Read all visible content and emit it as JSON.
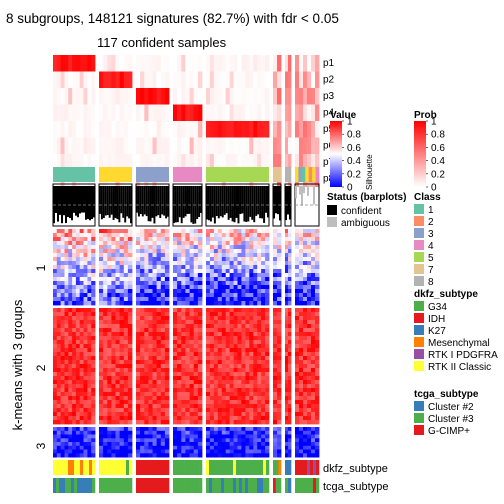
{
  "chart_data": {
    "type": "heatmap",
    "title": "8 subgroups, 148121 signatures (82.7%) with fdr < 0.05",
    "subtitle": "117 confident samples",
    "ylabel": "k-means with 3 groups",
    "row_groups": [
      "1",
      "2",
      "3"
    ],
    "prob_rows": [
      "p1",
      "p2",
      "p3",
      "p4",
      "p5",
      "p6",
      "p7",
      "p8"
    ],
    "column_blocks": [
      {
        "class": "1",
        "width": 42
      },
      {
        "class": "6",
        "width": 33
      },
      {
        "class": "3",
        "width": 33
      },
      {
        "class": "4",
        "width": 29
      },
      {
        "class": "5",
        "width": 63
      },
      {
        "class": "7",
        "width": 8
      },
      {
        "class": "8",
        "width": 6
      },
      {
        "class": "8",
        "width": 24
      }
    ],
    "legends": {
      "value": {
        "title": "Value",
        "ticks": [
          "1",
          "0.8",
          "0.6",
          "0.4",
          "0.2",
          "0"
        ],
        "colors": [
          "#ff0000",
          "#ffffff",
          "#0000ff"
        ]
      },
      "prob": {
        "title": "Prob",
        "ticks": [
          "1",
          "0.8",
          "0.6",
          "0.4",
          "0.2",
          "0"
        ],
        "colors": [
          "#ff0000",
          "#ffffff"
        ]
      },
      "silhouette_label": "Silhouette",
      "status": {
        "title": "Status (barplots)",
        "items": [
          {
            "label": "confident",
            "color": "#000000"
          },
          {
            "label": "ambiguous",
            "color": "#bebebe"
          }
        ]
      },
      "class": {
        "title": "Class",
        "items": [
          {
            "label": "1",
            "color": "#66c2a5"
          },
          {
            "label": "2",
            "color": "#fc8d62"
          },
          {
            "label": "3",
            "color": "#8da0cb"
          },
          {
            "label": "4",
            "color": "#e78ac3"
          },
          {
            "label": "5",
            "color": "#a6d854"
          },
          {
            "label": "7",
            "color": "#e5c494"
          },
          {
            "label": "8",
            "color": "#b3b3b3"
          }
        ]
      },
      "dkfz": {
        "title": "dkfz_subtype",
        "items": [
          {
            "label": "G34",
            "color": "#4daf4a"
          },
          {
            "label": "IDH",
            "color": "#e41a1c"
          },
          {
            "label": "K27",
            "color": "#377eb8"
          },
          {
            "label": "Mesenchymal",
            "color": "#ff7f00"
          },
          {
            "label": "RTK I PDGFRA",
            "color": "#984ea3"
          },
          {
            "label": "RTK II Classic",
            "color": "#ffff33"
          }
        ]
      },
      "tcga": {
        "title": "tcga_subtype",
        "items": [
          {
            "label": "Cluster #2",
            "color": "#377eb8"
          },
          {
            "label": "Cluster #3",
            "color": "#4daf4a"
          },
          {
            "label": "G-CIMP+",
            "color": "#e41a1c"
          }
        ]
      }
    },
    "bottom_tracks": [
      "dkfz_subtype",
      "tcga_subtype"
    ],
    "class6_color": "#ffd92f"
  }
}
